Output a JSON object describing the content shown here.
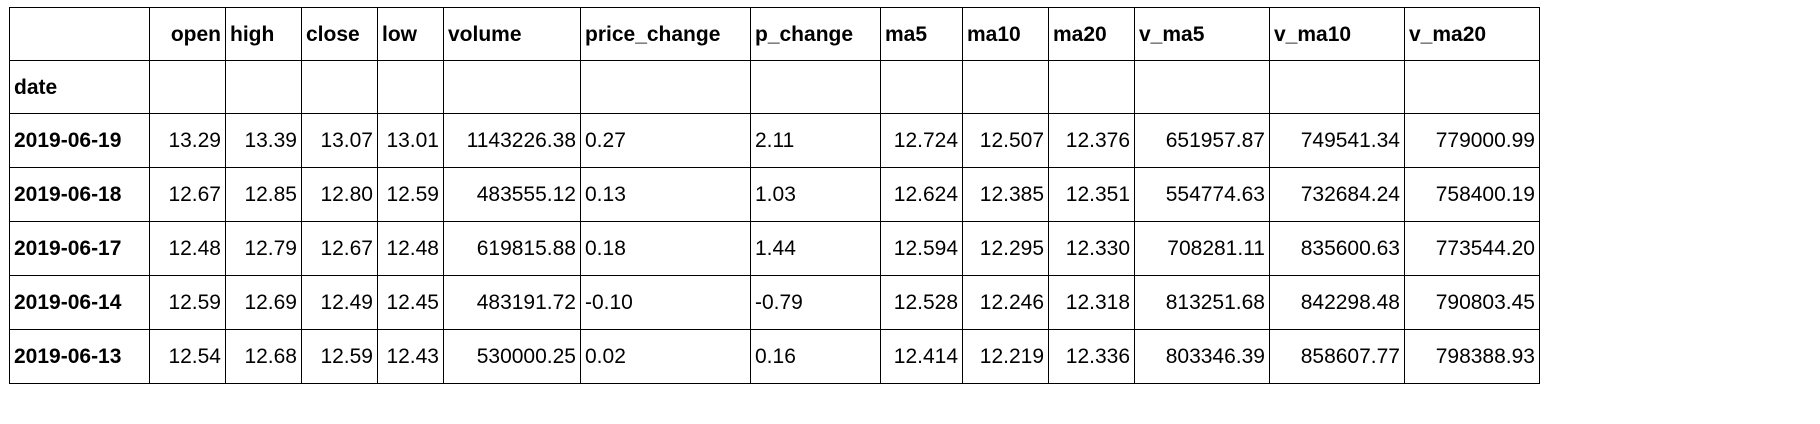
{
  "table": {
    "index_name": "date",
    "columns": [
      "open",
      "high",
      "close",
      "low",
      "volume",
      "price_change",
      "p_change",
      "ma5",
      "ma10",
      "ma20",
      "v_ma5",
      "v_ma10",
      "v_ma20"
    ],
    "rows": [
      {
        "date": "2019-06-19",
        "values": [
          "13.29",
          "13.39",
          "13.07",
          "13.01",
          "1143226.38",
          "0.27",
          "2.11",
          "12.724",
          "12.507",
          "12.376",
          "651957.87",
          "749541.34",
          "779000.99"
        ]
      },
      {
        "date": "2019-06-18",
        "values": [
          "12.67",
          "12.85",
          "12.80",
          "12.59",
          "483555.12",
          "0.13",
          "1.03",
          "12.624",
          "12.385",
          "12.351",
          "554774.63",
          "732684.24",
          "758400.19"
        ]
      },
      {
        "date": "2019-06-17",
        "values": [
          "12.48",
          "12.79",
          "12.67",
          "12.48",
          "619815.88",
          "0.18",
          "1.44",
          "12.594",
          "12.295",
          "12.330",
          "708281.11",
          "835600.63",
          "773544.20"
        ]
      },
      {
        "date": "2019-06-14",
        "values": [
          "12.59",
          "12.69",
          "12.49",
          "12.45",
          "483191.72",
          "-0.10",
          "-0.79",
          "12.528",
          "12.246",
          "12.318",
          "813251.68",
          "842298.48",
          "790803.45"
        ]
      },
      {
        "date": "2019-06-13",
        "values": [
          "12.54",
          "12.68",
          "12.59",
          "12.43",
          "530000.25",
          "0.02",
          "0.16",
          "12.414",
          "12.219",
          "12.336",
          "803346.39",
          "858607.77",
          "798388.93"
        ]
      }
    ]
  }
}
